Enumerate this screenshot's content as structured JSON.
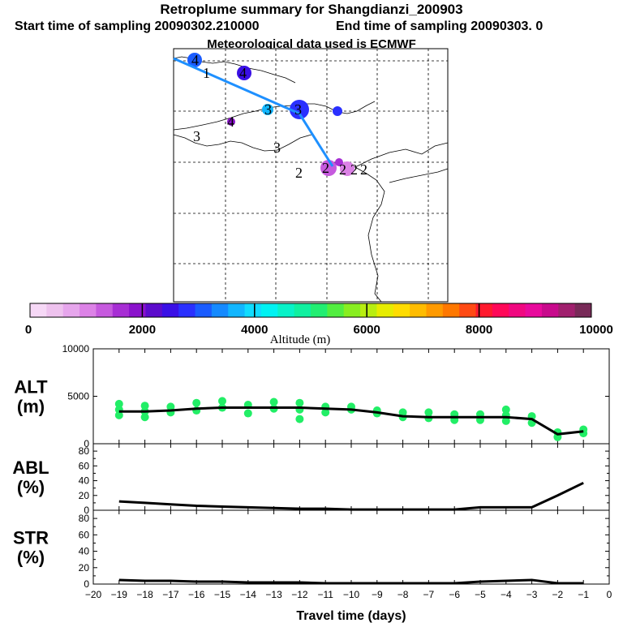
{
  "header": {
    "title": "Retroplume summary for Shangdianzi_200903",
    "start": "Start time of sampling 20090302.210000",
    "end": "End time of sampling 20090303.     0",
    "met": "Meteorological data used is ECMWF"
  },
  "colors": {
    "alt_points": "#22ee66",
    "track": "#1e90ff",
    "line": "#000000"
  },
  "colorbar": {
    "label": "Altitude (m)",
    "ticks": [
      "0",
      "2000",
      "4000",
      "6000",
      "8000",
      "10000"
    ],
    "colors": [
      "#f6d8f6",
      "#eec2ee",
      "#e6a6ec",
      "#dc82e6",
      "#c65ade",
      "#a72ed4",
      "#8a12cc",
      "#5c0ccc",
      "#3a10e6",
      "#2a30ff",
      "#1a5cff",
      "#158aff",
      "#12b6ff",
      "#10dcff",
      "#00f2f2",
      "#08f2c8",
      "#10f0a0",
      "#22ee72",
      "#52ee40",
      "#88ee20",
      "#b8ee10",
      "#e6ec00",
      "#ffdc00",
      "#ffbc00",
      "#ff9a00",
      "#ff7800",
      "#ff4a14",
      "#ff1a2e",
      "#ff0858",
      "#f00880",
      "#e80a9c",
      "#c80a8c",
      "#a0206e",
      "#782a58"
    ]
  },
  "map": {
    "trajectory_labels": [
      "4",
      "1",
      "4",
      "3",
      "3",
      "4",
      "3",
      "3",
      "2",
      "2",
      "2",
      "2",
      "2"
    ]
  },
  "chart_data": [
    {
      "type": "scatter+line",
      "name": "ALT",
      "ylabel": "ALT\n(m)",
      "ylabel_lines": [
        "ALT",
        "(m)"
      ],
      "xlim": [
        -20,
        0
      ],
      "ylim": [
        0,
        10000
      ],
      "yticks": [
        "10000",
        "5000",
        "0"
      ],
      "median": {
        "x": [
          -19,
          -18,
          -17,
          -16,
          -15,
          -14,
          -13,
          -12,
          -11,
          -10,
          -9,
          -8,
          -7,
          -6,
          -5,
          -4,
          -3,
          -2,
          -1
        ],
        "y": [
          3400,
          3400,
          3500,
          3700,
          3800,
          3800,
          3800,
          3800,
          3700,
          3600,
          3300,
          2900,
          2800,
          2800,
          2800,
          2800,
          2600,
          1000,
          1300
        ]
      },
      "points": {
        "x": [
          -19,
          -19,
          -19,
          -18,
          -18,
          -18,
          -17,
          -17,
          -16,
          -16,
          -15,
          -15,
          -14,
          -14,
          -13,
          -13,
          -12,
          -12,
          -12,
          -11,
          -11,
          -10,
          -10,
          -9,
          -9,
          -8,
          -8,
          -7,
          -7,
          -6,
          -6,
          -5,
          -5,
          -4,
          -4,
          -4,
          -3,
          -3,
          -2,
          -2,
          -1,
          -1
        ],
        "y": [
          3000,
          3600,
          4200,
          2800,
          3400,
          4000,
          3300,
          3900,
          3500,
          4300,
          3800,
          4500,
          3200,
          4100,
          3700,
          4400,
          2600,
          3600,
          4300,
          3300,
          3900,
          3600,
          3900,
          3200,
          3500,
          2800,
          3300,
          2700,
          3300,
          2500,
          3100,
          2500,
          3100,
          2400,
          3000,
          3600,
          2200,
          2900,
          700,
          1200,
          1100,
          1500
        ]
      }
    },
    {
      "type": "line",
      "name": "ABL",
      "ylabel_lines": [
        "ABL",
        "(%)"
      ],
      "xlim": [
        -20,
        0
      ],
      "ylim": [
        0,
        90
      ],
      "yticks": [
        "80",
        "60",
        "40",
        "20",
        "0"
      ],
      "x": [
        -19,
        -18,
        -17,
        -16,
        -15,
        -14,
        -13,
        -12,
        -11,
        -10,
        -9,
        -8,
        -7,
        -6,
        -5,
        -4,
        -3,
        -2,
        -1
      ],
      "y": [
        12,
        10,
        8,
        6,
        5,
        4,
        3,
        2,
        2,
        1,
        1,
        1,
        1,
        1,
        4,
        4,
        4,
        20,
        37
      ]
    },
    {
      "type": "line",
      "name": "STR",
      "ylabel_lines": [
        "STR",
        "(%)"
      ],
      "xlim": [
        -20,
        0
      ],
      "ylim": [
        0,
        90
      ],
      "yticks": [
        "80",
        "60",
        "40",
        "20",
        "0"
      ],
      "x": [
        -19,
        -18,
        -17,
        -16,
        -15,
        -14,
        -13,
        -12,
        -11,
        -10,
        -9,
        -8,
        -7,
        -6,
        -5,
        -4,
        -3,
        -2,
        -1
      ],
      "y": [
        5,
        4,
        4,
        3,
        3,
        2,
        2,
        2,
        1,
        1,
        1,
        1,
        1,
        1,
        3,
        4,
        5,
        1,
        1
      ],
      "xlabel": "Travel time (days)",
      "xticks": [
        "−20",
        "−19",
        "−18",
        "−17",
        "−16",
        "−15",
        "−14",
        "−13",
        "−12",
        "−11",
        "−10",
        "−9",
        "−8",
        "−7",
        "−6",
        "−5",
        "−4",
        "−3",
        "−2",
        "−1",
        "0"
      ]
    }
  ]
}
